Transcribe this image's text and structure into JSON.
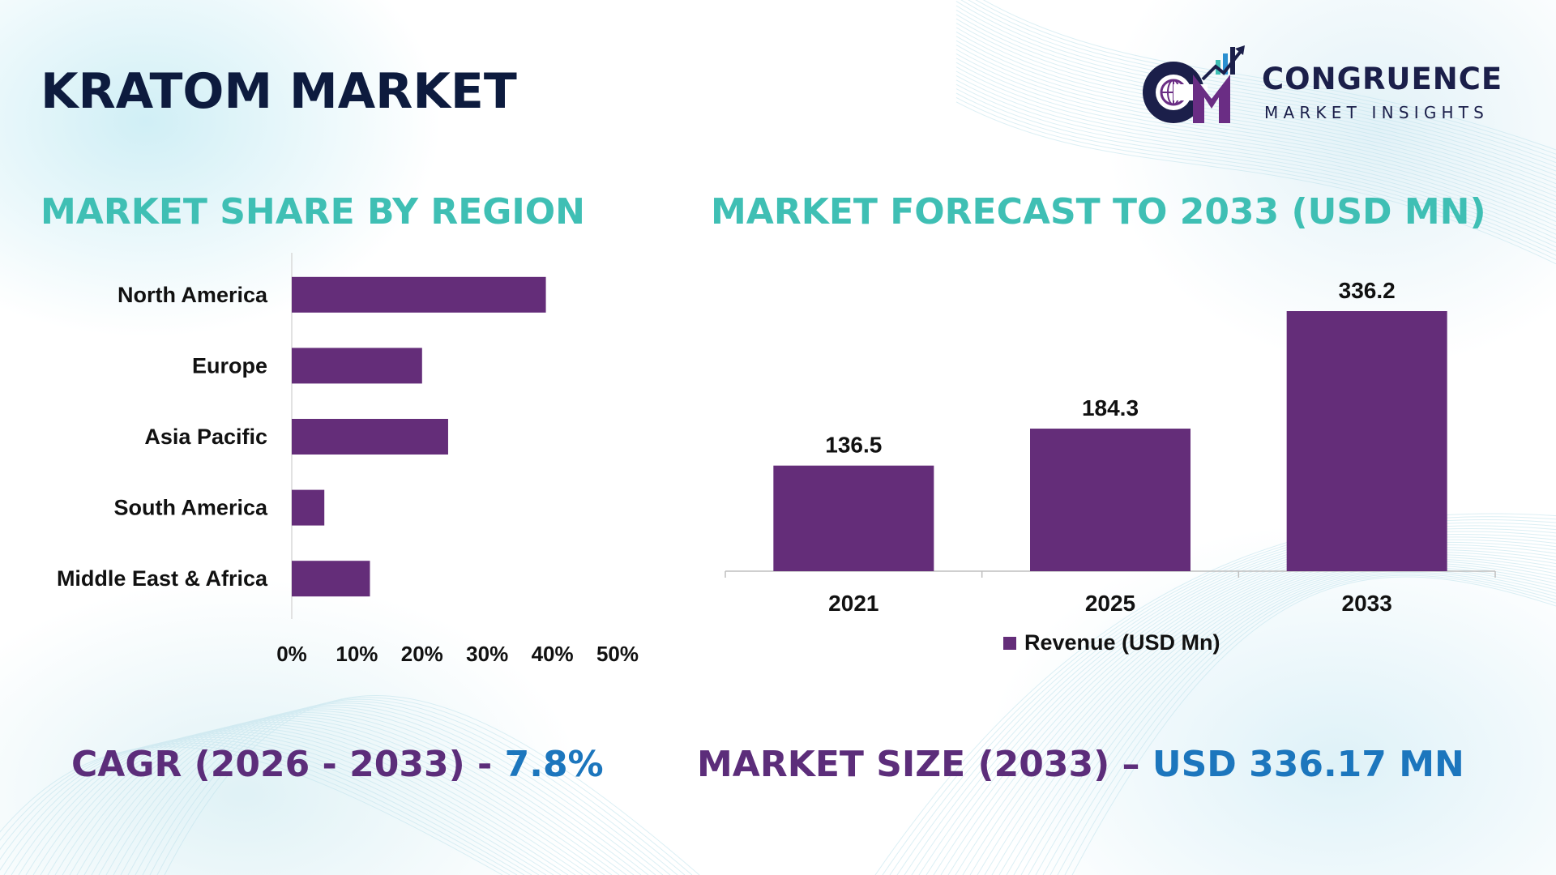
{
  "title": "KRATOM MARKET",
  "logo": {
    "name": "CONGRUENCE",
    "tagline": "MARKET INSIGHTS",
    "icon": "cm-globe-chart-logo",
    "colors": {
      "navy": "#1b1f4a",
      "purple": "#6a2d84",
      "teal": "#3fbfb4",
      "blue": "#2b8fd0"
    }
  },
  "colors": {
    "bar": "#642d79",
    "section_title": "#3fbfb4",
    "kpi_label": "#5c2d7a",
    "kpi_value": "#1c76bd",
    "title": "#0d1b3e"
  },
  "market_share": {
    "title": "MARKET SHARE BY REGION"
  },
  "forecast": {
    "title": "MARKET FORECAST TO 2033 (USD MN)",
    "legend": "Revenue (USD Mn)"
  },
  "kpis": {
    "cagr_label": "CAGR (2026 - 2033) - ",
    "cagr_value": "7.8%",
    "size_label": "MARKET SIZE (2033) – ",
    "size_value": "USD 336.17 MN"
  },
  "chart_data": [
    {
      "type": "bar",
      "orientation": "horizontal",
      "title": "MARKET SHARE BY REGION",
      "categories": [
        "North America",
        "Europe",
        "Asia Pacific",
        "South America",
        "Middle East & Africa"
      ],
      "values": [
        39,
        20,
        24,
        5,
        12
      ],
      "xlim": [
        0,
        50
      ],
      "ticks": [
        "0%",
        "10%",
        "20%",
        "30%",
        "40%",
        "50%"
      ],
      "tick_values": [
        0,
        10,
        20,
        30,
        40,
        50
      ],
      "grid": false
    },
    {
      "type": "bar",
      "orientation": "vertical",
      "title": "MARKET FORECAST TO 2033 (USD MN)",
      "categories": [
        "2021",
        "2025",
        "2033"
      ],
      "series": [
        {
          "name": "Revenue (USD Mn)",
          "values": [
            136.5,
            184.3,
            336.2
          ]
        }
      ],
      "data_labels": [
        "136.5",
        "184.3",
        "336.2"
      ],
      "ylim": [
        0,
        336.2
      ],
      "legend": "bottom",
      "grid": false
    }
  ]
}
